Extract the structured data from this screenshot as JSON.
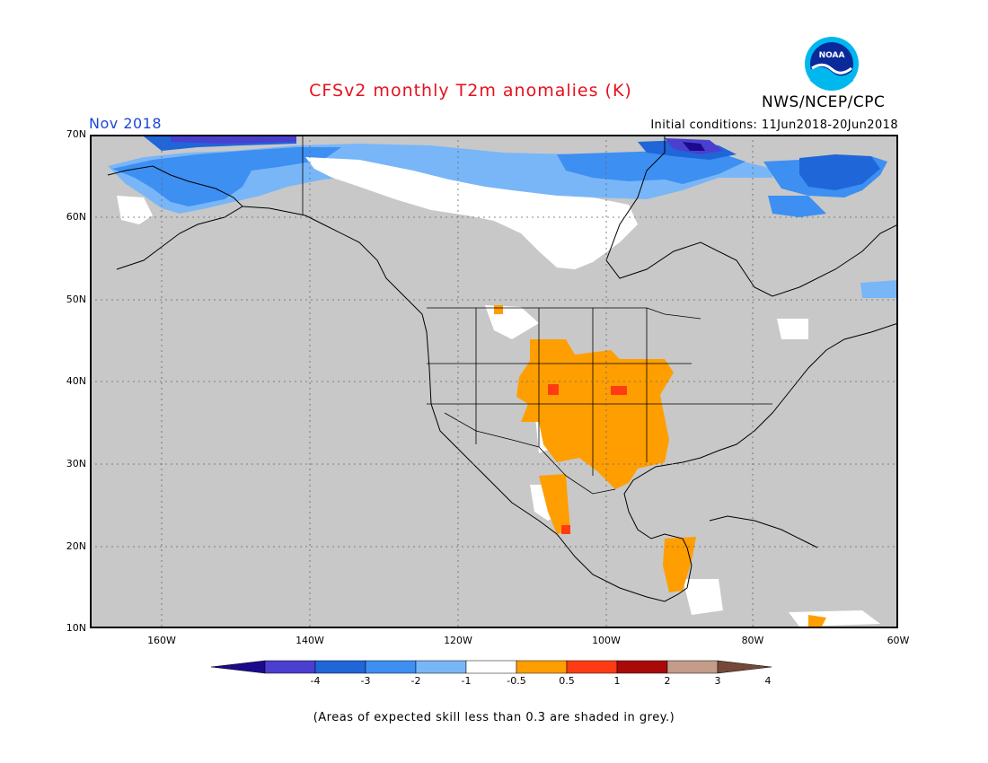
{
  "header": {
    "title": "CFSv2 monthly T2m anomalies (K)",
    "agency": "NWS/NCEP/CPC",
    "logo_text": "NOAA",
    "month": "Nov 2018",
    "initial_conditions": "Initial conditions: 11Jun2018-20Jun2018"
  },
  "map": {
    "lat_labels": [
      "70N",
      "60N",
      "50N",
      "40N",
      "30N",
      "20N",
      "10N"
    ],
    "lon_labels": [
      "160W",
      "140W",
      "120W",
      "100W",
      "80W",
      "60W"
    ],
    "background_color": "#c8c8c8",
    "land_outline_color": "#000000"
  },
  "colorbar": {
    "labels": [
      "-4",
      "-3",
      "-2",
      "-1",
      "-0.5",
      "0.5",
      "1",
      "2",
      "3",
      "4"
    ],
    "colors": [
      "#1c0a8c",
      "#4b3fcf",
      "#1f66d8",
      "#3d8ff2",
      "#79b6f8",
      "#ffffff",
      "#ff9e00",
      "#ff3b14",
      "#a80a0a",
      "#c39c8a",
      "#74493a"
    ]
  },
  "footnote": "(Areas of expected skill less than 0.3 are shaded in grey.)"
}
